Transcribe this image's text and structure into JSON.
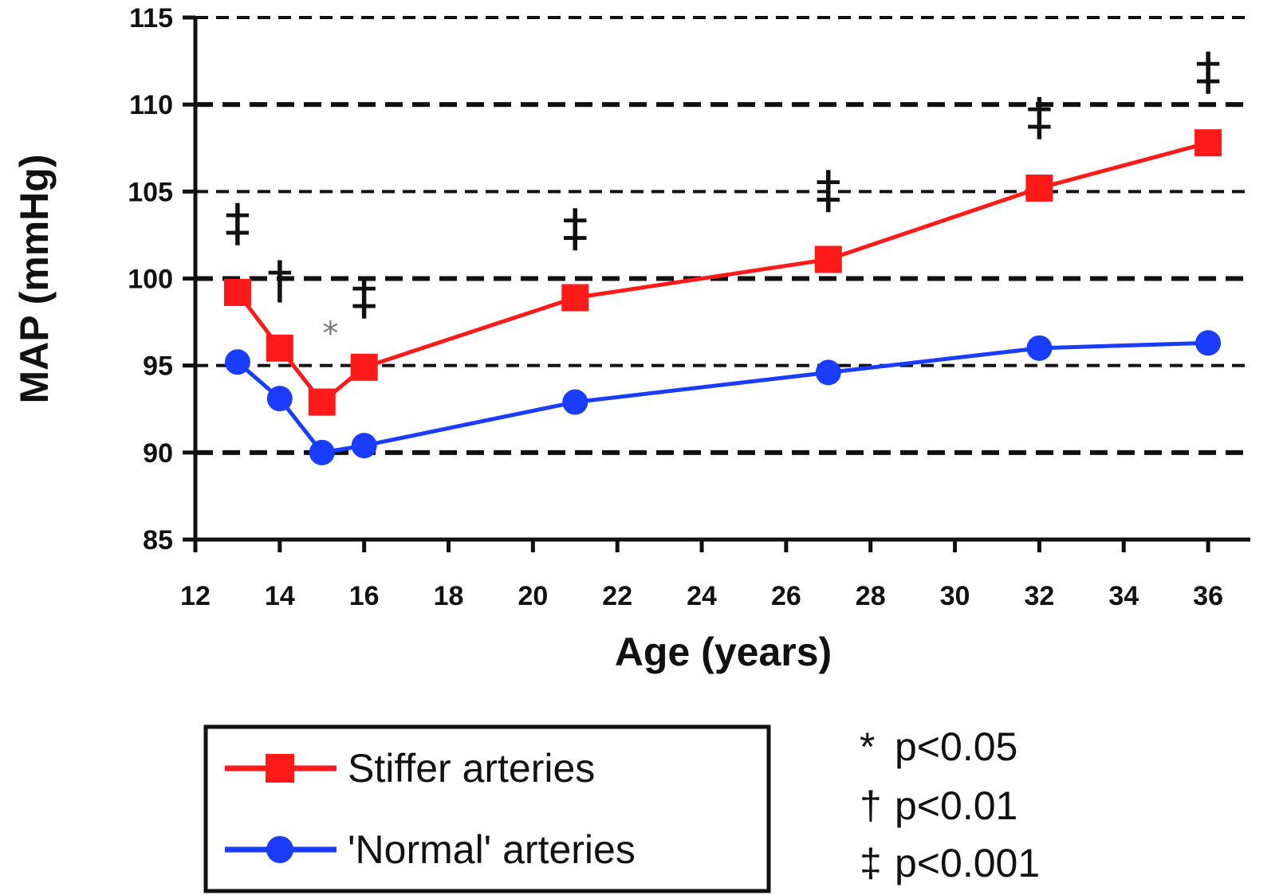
{
  "chart_data": {
    "type": "line",
    "title": "",
    "xlabel": "Age (years)",
    "ylabel": "MAP (mmHg)",
    "xlim": [
      12,
      37
    ],
    "ylim": [
      85,
      115
    ],
    "xticks": [
      "12",
      "14",
      "16",
      "18",
      "20",
      "22",
      "24",
      "26",
      "28",
      "30",
      "32",
      "34",
      "36"
    ],
    "yticks": [
      "85",
      "90",
      "95",
      "100",
      "105",
      "110",
      "115"
    ],
    "grid": "horizontal dashed",
    "legend_placement": "bottom-left",
    "series": [
      {
        "name": "Stiffer arteries",
        "color": "#ff1a1a",
        "marker": "square",
        "x": [
          13,
          14,
          15,
          16,
          21,
          27,
          32,
          36
        ],
        "y": [
          99.2,
          96.0,
          92.9,
          94.9,
          98.9,
          101.1,
          105.2,
          107.8
        ]
      },
      {
        "name": "'Normal' arteries",
        "color": "#1a3cff",
        "marker": "circle",
        "x": [
          13,
          14,
          15,
          16,
          21,
          27,
          32,
          36
        ],
        "y": [
          95.2,
          93.1,
          90.0,
          90.4,
          92.9,
          94.6,
          96.0,
          96.3
        ]
      }
    ],
    "annotations": [
      {
        "x": 13,
        "y": 103.2,
        "symbol": "‡"
      },
      {
        "x": 14,
        "y": 99.9,
        "symbol": "†"
      },
      {
        "x": 15.2,
        "y": 97.5,
        "symbol": "*"
      },
      {
        "x": 16,
        "y": 99.0,
        "symbol": "‡"
      },
      {
        "x": 21,
        "y": 102.9,
        "symbol": "‡"
      },
      {
        "x": 27,
        "y": 105.1,
        "symbol": "‡"
      },
      {
        "x": 32,
        "y": 109.3,
        "symbol": "‡"
      },
      {
        "x": 36,
        "y": 111.9,
        "symbol": "‡"
      }
    ],
    "significance_legend": [
      {
        "symbol": "*",
        "text": "p<0.05"
      },
      {
        "symbol": "†",
        "text": "p<0.01"
      },
      {
        "symbol": "‡",
        "text": "p<0.001"
      }
    ]
  }
}
